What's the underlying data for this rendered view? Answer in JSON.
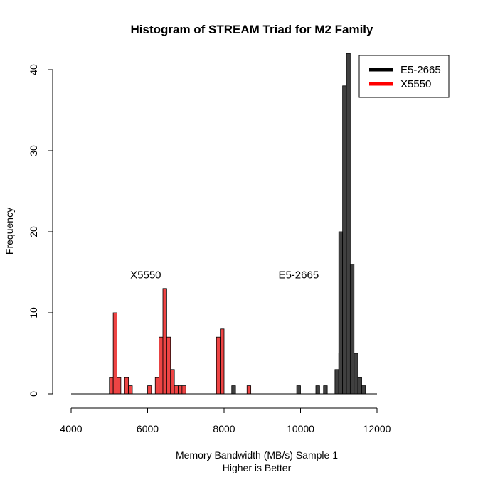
{
  "chart_data": {
    "type": "bar",
    "title": "Histogram of STREAM Triad for M2 Family",
    "xlabel": "Memory Bandwidth (MB/s) Sample 1",
    "xlabel2": "Higher is Better",
    "ylabel": "Frequency",
    "xlim": [
      4000,
      12000
    ],
    "ylim": [
      0,
      40
    ],
    "x_ticks": [
      "4000",
      "6000",
      "8000",
      "10000",
      "12000"
    ],
    "y_ticks": [
      "0",
      "10",
      "20",
      "30",
      "40"
    ],
    "bin_width": 100,
    "legend_position": "top-right",
    "grid": false,
    "series": [
      {
        "name": "E5-2665",
        "color": "#404040",
        "legend_color": "#000000",
        "bins": [
          {
            "x": 8200,
            "count": 1
          },
          {
            "x": 9900,
            "count": 1
          },
          {
            "x": 10400,
            "count": 1
          },
          {
            "x": 10600,
            "count": 1
          },
          {
            "x": 10900,
            "count": 3
          },
          {
            "x": 11000,
            "count": 5
          },
          {
            "x": 11000,
            "count": 20
          },
          {
            "x": 11100,
            "count": 38
          },
          {
            "x": 11200,
            "count": 42
          },
          {
            "x": 11300,
            "count": 16
          },
          {
            "x": 11400,
            "count": 5
          },
          {
            "x": 11500,
            "count": 2
          },
          {
            "x": 11600,
            "count": 1
          }
        ]
      },
      {
        "name": "X5550",
        "color": "#ee4444",
        "legend_color": "#ff0000",
        "bins": [
          {
            "x": 5000,
            "count": 2
          },
          {
            "x": 5100,
            "count": 10
          },
          {
            "x": 5200,
            "count": 2
          },
          {
            "x": 5400,
            "count": 2
          },
          {
            "x": 5500,
            "count": 1
          },
          {
            "x": 6000,
            "count": 1
          },
          {
            "x": 6200,
            "count": 2
          },
          {
            "x": 6300,
            "count": 7
          },
          {
            "x": 6400,
            "count": 13
          },
          {
            "x": 6500,
            "count": 7
          },
          {
            "x": 6600,
            "count": 3
          },
          {
            "x": 6700,
            "count": 1
          },
          {
            "x": 6800,
            "count": 1
          },
          {
            "x": 6900,
            "count": 1
          },
          {
            "x": 7800,
            "count": 7
          },
          {
            "x": 7900,
            "count": 8
          },
          {
            "x": 8600,
            "count": 1
          }
        ]
      }
    ],
    "annotations": [
      {
        "text": "X5550",
        "x": 5950,
        "y": 14.7
      },
      {
        "text": "E5-2665",
        "x": 9950,
        "y": 14.7
      }
    ]
  }
}
